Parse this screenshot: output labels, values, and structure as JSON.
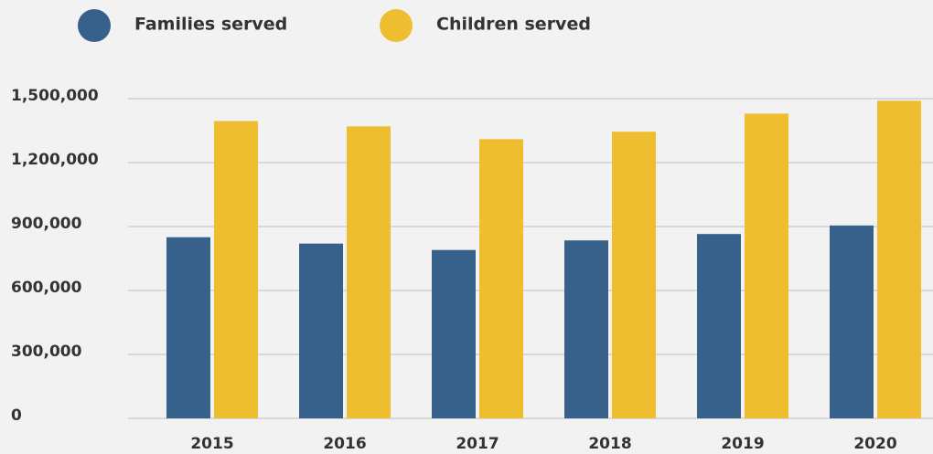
{
  "chart_data": {
    "type": "bar",
    "categories": [
      "2015",
      "2016",
      "2017",
      "2018",
      "2019",
      "2020"
    ],
    "series": [
      {
        "name": "Families served",
        "color": "#37618b",
        "values": [
          850000,
          820000,
          790000,
          835000,
          865000,
          905000
        ]
      },
      {
        "name": "Children served",
        "color": "#eebd30",
        "values": [
          1395000,
          1370000,
          1310000,
          1345000,
          1430000,
          1490000
        ]
      }
    ],
    "ylim": [
      0,
      1500000
    ],
    "yticks": [
      0,
      {
        "value": 300000,
        "label": "300,000"
      },
      {
        "value": 600000,
        "label": "600,000"
      },
      {
        "value": 900000,
        "label": "900,000"
      },
      {
        "value": 1200000,
        "label": "1,200,000"
      },
      {
        "value": 1500000,
        "label": "1,500,000"
      }
    ],
    "grid": true,
    "legend": "top-left"
  }
}
